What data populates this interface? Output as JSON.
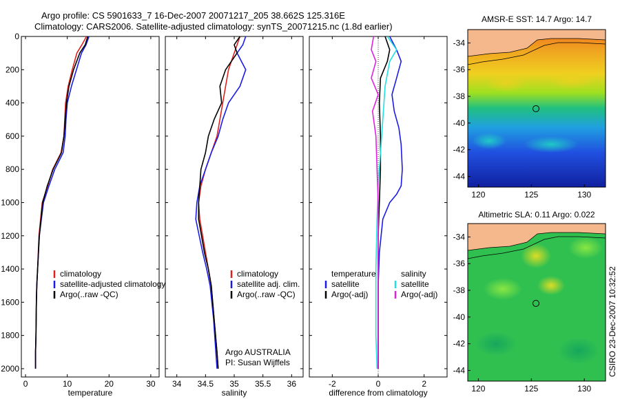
{
  "header": {
    "line1": "Argo profile: CS 5901633_7 16-Dec-2007 20071217_205 38.662S 125.316E",
    "line2": "Climatology: CARS2006. Satellite-adjusted climatology: synTS_20071215.nc (1.8d earlier)"
  },
  "colors": {
    "climatology": "#e02020",
    "satellite": "#1a1ae6",
    "argo": "#000000",
    "salinity_satellite": "#20e0e0",
    "salinity_argo": "#e020e0",
    "land": "#f5b88c"
  },
  "chart_data": [
    {
      "type": "line",
      "panel": "temperature",
      "xlabel": "temperature",
      "xlim": [
        -1,
        32
      ],
      "ylim": [
        2050,
        0
      ],
      "xticks": [
        0,
        10,
        20,
        30
      ],
      "yticks": [
        0,
        200,
        400,
        600,
        800,
        1000,
        1200,
        1400,
        1600,
        1800,
        2000
      ],
      "legend": [
        "climatology",
        "satellite-adjusted climatology",
        "Argo(..raw -QC)"
      ],
      "series": [
        {
          "name": "climatology",
          "color": "climatology",
          "x": [
            14.6,
            13.5,
            12.3,
            11.2,
            10.2,
            9.6,
            9.4,
            9.2,
            8.5,
            6.5,
            5.3,
            4.0,
            3.2,
            2.9,
            2.7,
            2.6,
            2.5,
            2.4,
            2.4
          ],
          "y": [
            0,
            50,
            100,
            200,
            300,
            400,
            500,
            600,
            700,
            800,
            900,
            1000,
            1200,
            1400,
            1500,
            1600,
            1800,
            1900,
            2000
          ]
        },
        {
          "name": "satellite-adjusted climatology",
          "color": "satellite",
          "x": [
            15.2,
            14.5,
            13.4,
            12.2,
            11.0,
            10.0,
            9.7,
            9.5,
            9.0,
            7.0,
            5.6,
            4.3,
            3.3,
            2.9,
            2.7,
            2.6,
            2.5,
            2.4,
            2.4
          ],
          "y": [
            0,
            50,
            100,
            200,
            300,
            400,
            500,
            600,
            700,
            800,
            900,
            1000,
            1200,
            1400,
            1500,
            1600,
            1800,
            1900,
            2000
          ]
        },
        {
          "name": "Argo(..raw -QC)",
          "color": "argo",
          "x": [
            14.9,
            14.3,
            13.0,
            11.5,
            10.4,
            9.8,
            9.5,
            9.2,
            8.6,
            6.6,
            5.2,
            4.1,
            3.3,
            2.9,
            2.7,
            2.6,
            2.5,
            2.4,
            2.4
          ],
          "y": [
            0,
            50,
            100,
            200,
            300,
            400,
            500,
            600,
            700,
            800,
            900,
            1000,
            1200,
            1400,
            1500,
            1600,
            1800,
            1900,
            2000
          ]
        }
      ]
    },
    {
      "type": "line",
      "panel": "salinity",
      "xlabel": "salinity",
      "xlim": [
        33.8,
        36.2
      ],
      "ylim": [
        2050,
        0
      ],
      "xticks": [
        34,
        34.5,
        35,
        35.5,
        36
      ],
      "legend": [
        "climatology",
        "satellite adj. clim.",
        "Argo(..raw -QC)"
      ],
      "annotation": [
        "Argo AUSTRALIA",
        "PI: Susan Wijffels"
      ],
      "series": [
        {
          "name": "climatology",
          "color": "climatology",
          "x": [
            35.1,
            35.05,
            35.0,
            34.9,
            34.85,
            34.8,
            34.75,
            34.7,
            34.6,
            34.5,
            34.42,
            34.38,
            34.4,
            34.5,
            34.55,
            34.6,
            34.65,
            34.7,
            34.72
          ],
          "y": [
            0,
            50,
            100,
            200,
            300,
            400,
            500,
            600,
            700,
            800,
            900,
            1000,
            1100,
            1300,
            1400,
            1500,
            1700,
            1900,
            2000
          ]
        },
        {
          "name": "satellite adj. clim.",
          "color": "satellite",
          "x": [
            35.2,
            35.15,
            35.05,
            35.2,
            35.1,
            34.9,
            34.8,
            34.72,
            34.6,
            34.5,
            34.4,
            34.35,
            34.33,
            34.45,
            34.52,
            34.58,
            34.64,
            34.68,
            34.7
          ],
          "y": [
            0,
            50,
            100,
            200,
            300,
            400,
            500,
            600,
            700,
            800,
            900,
            1000,
            1100,
            1300,
            1400,
            1500,
            1700,
            1900,
            2000
          ]
        },
        {
          "name": "Argo(..raw -QC)",
          "color": "argo",
          "x": [
            35.1,
            35.0,
            35.05,
            34.85,
            34.75,
            34.78,
            34.65,
            34.55,
            34.5,
            34.42,
            34.4,
            34.38,
            34.38,
            34.48,
            34.55,
            34.6,
            34.65,
            34.7,
            34.72
          ],
          "y": [
            0,
            50,
            100,
            200,
            300,
            400,
            500,
            600,
            700,
            800,
            900,
            1000,
            1100,
            1300,
            1400,
            1500,
            1700,
            1900,
            2000
          ]
        }
      ]
    },
    {
      "type": "line",
      "panel": "difference",
      "xlabel": "difference from climatology",
      "xlim": [
        -3,
        3
      ],
      "ylim": [
        2050,
        0
      ],
      "xticks": [
        -2,
        0,
        2
      ],
      "legend": [
        {
          "group": "temperature",
          "items": [
            "satellite",
            "Argo(-adj)"
          ]
        },
        {
          "group": "salinity",
          "items": [
            "satellite",
            "Argo(-adj)"
          ]
        }
      ],
      "series": [
        {
          "name": "temperature satellite",
          "color": "satellite",
          "x": [
            0.5,
            0.8,
            1.0,
            0.8,
            0.6,
            0.7,
            0.9,
            1.0,
            1.05,
            1.0,
            0.8,
            0.5,
            0.2,
            0.05,
            0.0,
            0.0,
            0.0
          ],
          "y": [
            0,
            80,
            150,
            250,
            350,
            450,
            550,
            650,
            800,
            900,
            950,
            1000,
            1100,
            1300,
            1500,
            1800,
            2000
          ]
        },
        {
          "name": "temperature Argo(-adj)",
          "color": "argo",
          "x": [
            0.3,
            0.5,
            0.4,
            0.1,
            0.05,
            0.1,
            0.1,
            0.05,
            0.0,
            0.0,
            0.0
          ],
          "y": [
            0,
            80,
            150,
            250,
            400,
            600,
            800,
            1000,
            1200,
            1600,
            2000
          ]
        },
        {
          "name": "salinity satellite",
          "color": "salinity_satellite",
          "x": [
            0.4,
            0.8,
            0.5,
            0.3,
            0.2,
            0.1,
            0.0,
            -0.05,
            -0.1,
            -0.1,
            -0.05
          ],
          "y": [
            0,
            80,
            150,
            300,
            500,
            700,
            900,
            1100,
            1400,
            1800,
            2000
          ]
        },
        {
          "name": "salinity Argo(-adj)",
          "color": "salinity_argo",
          "x": [
            -0.2,
            -0.3,
            -0.1,
            -0.3,
            0.0,
            -0.25,
            -0.1,
            -0.05,
            0.0,
            0.0,
            0.0
          ],
          "y": [
            0,
            80,
            150,
            250,
            350,
            450,
            600,
            800,
            1000,
            1500,
            2000
          ]
        }
      ]
    },
    {
      "type": "heatmap",
      "panel": "sst-map",
      "title": "AMSR-E SST: 14.7 Argo: 14.7",
      "xlim": [
        119,
        132
      ],
      "ylim": [
        -44.8,
        -33
      ],
      "xticks": [
        120,
        125,
        130
      ],
      "yticks": [
        -34,
        -36,
        -38,
        -40,
        -42,
        -44
      ],
      "marker": {
        "lon": 125.316,
        "lat": -38.662
      }
    },
    {
      "type": "heatmap",
      "panel": "sla-map",
      "title": "Altimetric SLA: 0.11 Argo: 0.022",
      "xlim": [
        119,
        132
      ],
      "ylim": [
        -44.8,
        -33
      ],
      "xticks": [
        120,
        125,
        130
      ],
      "yticks": [
        -34,
        -36,
        -38,
        -40,
        -42,
        -44
      ],
      "marker": {
        "lon": 125.316,
        "lat": -38.662
      },
      "side_label": "CSIRO 23-Dec-2007 10:32:52"
    }
  ]
}
